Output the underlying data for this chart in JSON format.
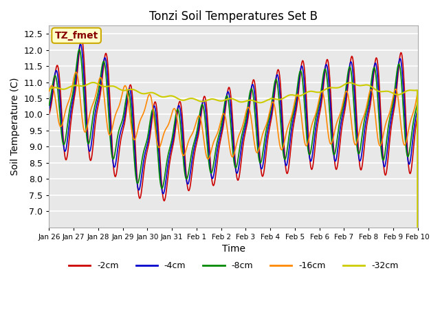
{
  "title": "Tonzi Soil Temperatures Set B",
  "xlabel": "Time",
  "ylabel": "Soil Temperature (C)",
  "ylim": [
    6.5,
    12.75
  ],
  "yticks": [
    7.0,
    7.5,
    8.0,
    8.5,
    9.0,
    9.5,
    10.0,
    10.5,
    11.0,
    11.5,
    12.0,
    12.5
  ],
  "bg_color": "#e8e8e8",
  "fig_bg_color": "#ffffff",
  "line_colors": {
    "-2cm": "#cc0000",
    "-4cm": "#0000cc",
    "-8cm": "#008800",
    "-16cm": "#ff8800",
    "-32cm": "#cccc00"
  },
  "annotation_text": "TZ_fmet",
  "annotation_color": "#880000",
  "annotation_bg": "#ffffcc",
  "x_tick_labels": [
    "Jan 26",
    "Jan 27",
    "Jan 28",
    "Jan 29",
    "Jan 30",
    "Jan 31",
    "Feb 1",
    "Feb 2",
    "Feb 3",
    "Feb 4",
    "Feb 5",
    "Feb 6",
    "Feb 7",
    "Feb 8",
    "Feb 9",
    "Feb 10"
  ],
  "n_points": 721,
  "legend_labels": [
    "-2cm",
    "-4cm",
    "-8cm",
    "-16cm",
    "-32cm"
  ]
}
